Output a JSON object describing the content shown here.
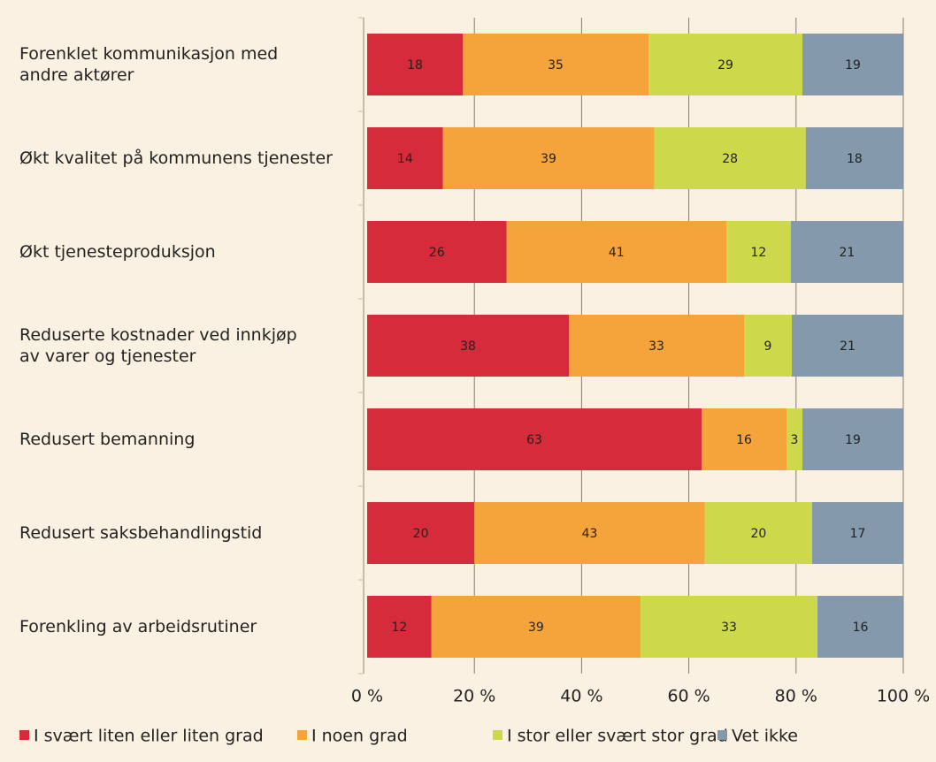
{
  "chart_data": {
    "type": "bar",
    "orientation": "horizontal",
    "stack": "percent",
    "categories": [
      "Forenklet kommunikasjon med\nandre aktører",
      "Økt kvalitet på kommunens tjenester",
      "Økt tjenesteproduksjon",
      "Reduserte kostnader ved innkjøp\nav varer og  tjenester",
      "Redusert bemanning",
      "Redusert saksbehandlingstid",
      "Forenkling av arbeidsrutiner"
    ],
    "series": [
      {
        "name": "I svært liten eller liten grad",
        "color": "#d62b3a",
        "values": [
          18,
          14,
          26,
          38,
          63,
          20,
          12
        ]
      },
      {
        "name": "I noen grad",
        "color": "#f5a33b",
        "values": [
          35,
          39,
          41,
          33,
          16,
          43,
          39
        ]
      },
      {
        "name": "I stor eller svært stor grad",
        "color": "#cdd94a",
        "values": [
          29,
          28,
          12,
          9,
          3,
          20,
          33
        ]
      },
      {
        "name": "Vet ikke",
        "color": "#8499ab",
        "values": [
          19,
          18,
          21,
          21,
          19,
          17,
          16
        ]
      }
    ],
    "xlim": [
      0,
      100
    ],
    "xticks": [
      {
        "value": 0,
        "label": "0 %"
      },
      {
        "value": 20,
        "label": "20 %"
      },
      {
        "value": 40,
        "label": "40 %"
      },
      {
        "value": 60,
        "label": "60 %"
      },
      {
        "value": 80,
        "label": "80 %"
      },
      {
        "value": 100,
        "label": "100 %"
      }
    ],
    "grid": true,
    "legend": "bottom"
  }
}
